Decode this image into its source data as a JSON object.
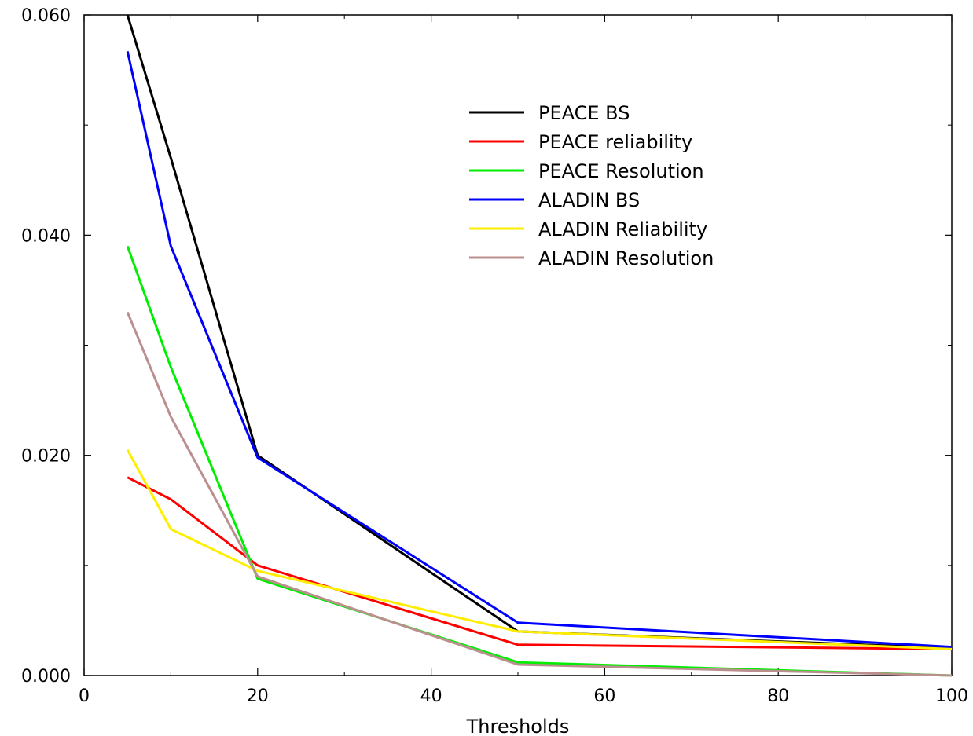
{
  "chart_data": {
    "type": "line",
    "title": "",
    "xlabel": "Thresholds",
    "ylabel": "",
    "xlim": [
      0,
      100
    ],
    "ylim": [
      0,
      0.06
    ],
    "xticks": [
      "0",
      "20",
      "40",
      "60",
      "80",
      "100"
    ],
    "yticks": [
      "0.000",
      "0.020",
      "0.040",
      "0.060"
    ],
    "x": [
      5,
      10,
      20,
      50,
      100
    ],
    "legend_position": "top-right",
    "series": [
      {
        "name": "PEACE BS",
        "color": "#000000",
        "values": [
          0.06,
          0.047,
          0.02,
          0.004,
          0.0025
        ]
      },
      {
        "name": "PEACE reliability",
        "color": "#ff0000",
        "values": [
          0.018,
          0.016,
          0.01,
          0.0028,
          0.0024
        ]
      },
      {
        "name": "PEACE Resolution",
        "color": "#00ee00",
        "values": [
          0.039,
          0.028,
          0.0088,
          0.0012,
          0.0
        ]
      },
      {
        "name": "ALADIN BS",
        "color": "#0000ff",
        "values": [
          0.0567,
          0.039,
          0.0198,
          0.0048,
          0.0026
        ]
      },
      {
        "name": "ALADIN Reliability",
        "color": "#ffee00",
        "values": [
          0.0205,
          0.0133,
          0.0095,
          0.004,
          0.0024
        ]
      },
      {
        "name": "ALADIN Resolution",
        "color": "#bc8f8f",
        "values": [
          0.033,
          0.0235,
          0.009,
          0.001,
          0.0
        ]
      }
    ]
  }
}
